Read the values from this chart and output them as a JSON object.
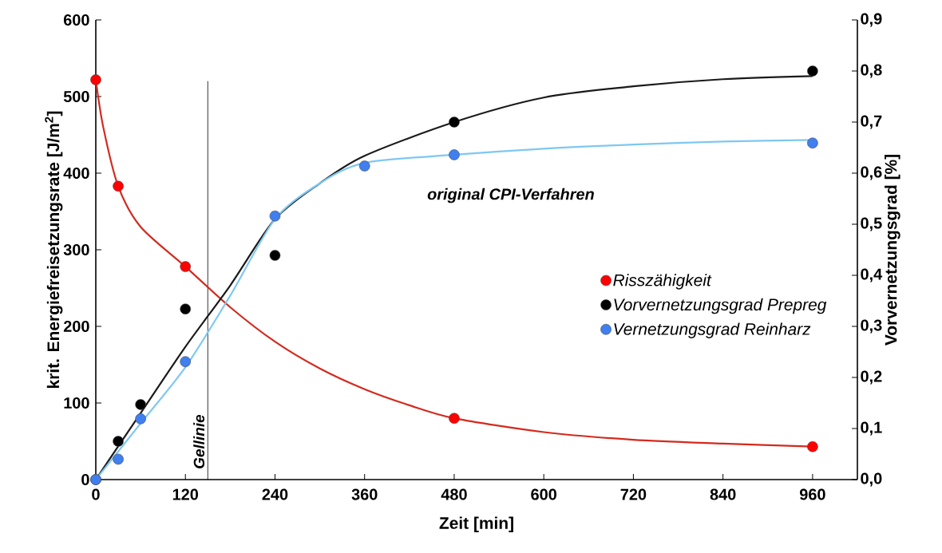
{
  "chart_data": {
    "type": "scatter",
    "xlabel": "Zeit  [min]",
    "ylabel": "krit. Energiefreisetzungsrate  [J/m$^{2}$]",
    "y2label": "Vorvernetzungsgrad  [%]",
    "annotations": [
      "original CPI-Verfahren"
    ],
    "xlim": [
      0,
      1020
    ],
    "xticks": [
      0,
      120,
      240,
      360,
      480,
      600,
      720,
      840,
      960
    ],
    "ylim": [
      0,
      600
    ],
    "yticks": [
      0,
      100,
      200,
      300,
      400,
      500,
      600
    ],
    "y2lim": [
      0,
      0.9
    ],
    "y2ticks": [
      {
        "value": 0,
        "label": "0,0"
      },
      {
        "value": 0.1,
        "label": "0,1"
      },
      {
        "value": 0.2,
        "label": "0,2"
      },
      {
        "value": 0.3,
        "label": "0,3"
      },
      {
        "value": 0.4,
        "label": "0,4"
      },
      {
        "value": 0.5,
        "label": "0,5"
      },
      {
        "value": 0.6,
        "label": "0,6"
      },
      {
        "value": 0.7,
        "label": "0,7"
      },
      {
        "value": 0.8,
        "label": "0,8"
      },
      {
        "value": 0.9,
        "label": "0,9"
      }
    ],
    "ref_lines": [
      {
        "axis": "x",
        "value": 150,
        "label": "Gellinie",
        "color": "#000000"
      }
    ],
    "marker": "circle",
    "legend": "right",
    "grid": false,
    "series": [
      {
        "type": "line",
        "marker": "none",
        "color": "#d42a1e",
        "x": [
          0,
          10,
          30,
          60,
          120,
          180,
          240,
          300,
          360,
          420,
          480,
          600,
          720,
          840,
          960
        ],
        "values": [
          522,
          460,
          383,
          330,
          278,
          225,
          180,
          145,
          118,
          97,
          80,
          62,
          52,
          47,
          43
        ]
      },
      {
        "type": "line",
        "marker": "none",
        "axis": "y2",
        "color": "#1a1a1a",
        "x": [
          0,
          60,
          120,
          180,
          240,
          300,
          360,
          480,
          600,
          720,
          840,
          960
        ],
        "values": [
          0,
          0.13,
          0.26,
          0.38,
          0.51,
          0.58,
          0.634,
          0.7,
          0.748,
          0.77,
          0.784,
          0.79
        ]
      },
      {
        "type": "line",
        "marker": "none",
        "axis": "y2",
        "color": "#7ec8f0",
        "x": [
          0,
          60,
          120,
          180,
          240,
          300,
          360,
          480,
          600,
          720,
          840,
          960
        ],
        "values": [
          0,
          0.11,
          0.22,
          0.36,
          0.51,
          0.58,
          0.62,
          0.636,
          0.648,
          0.656,
          0.662,
          0.665
        ]
      },
      {
        "name": "Risszähigkeit",
        "type": "scatter",
        "color": "#ff0000",
        "x": [
          0,
          30,
          120,
          480,
          960
        ],
        "values": [
          522,
          383,
          278,
          80,
          43
        ]
      },
      {
        "name": "Vorvernetzungsgrad Prepreg",
        "type": "scatter",
        "axis": "y2",
        "color": "#000000",
        "x": [
          0,
          30,
          60,
          120,
          240,
          480,
          960
        ],
        "values": [
          0,
          0.075,
          0.147,
          0.334,
          0.439,
          0.7,
          0.8
        ]
      },
      {
        "name": "Vernetzungsgrad Reinharz",
        "type": "scatter",
        "axis": "y2",
        "color": "#3f7fef",
        "x": [
          0,
          30,
          60,
          120,
          240,
          360,
          480,
          960
        ],
        "values": [
          0,
          0.04,
          0.119,
          0.231,
          0.516,
          0.614,
          0.636,
          0.659
        ]
      }
    ]
  }
}
